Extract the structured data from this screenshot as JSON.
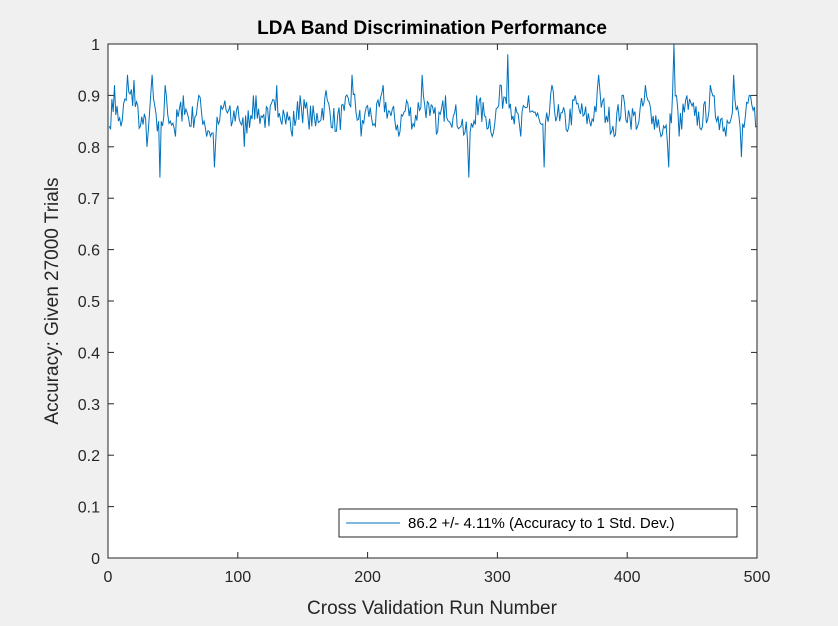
{
  "chart_data": {
    "type": "line",
    "title": "LDA Band Discrimination Performance",
    "xlabel": "Cross Validation Run Number",
    "ylabel": "Accuracy: Given 27000 Trials",
    "xlim": [
      0,
      500
    ],
    "ylim": [
      0,
      1
    ],
    "xticks": [
      0,
      100,
      200,
      300,
      400,
      500
    ],
    "xtick_labels": [
      "0",
      "100",
      "200",
      "300",
      "400",
      "500"
    ],
    "yticks": [
      0,
      0.1,
      0.2,
      0.3,
      0.4,
      0.5,
      0.6,
      0.7,
      0.8,
      0.9,
      1
    ],
    "ytick_labels": [
      "0",
      "0.1",
      "0.2",
      "0.3",
      "0.4",
      "0.5",
      "0.6",
      "0.7",
      "0.8",
      "0.9",
      "1"
    ],
    "grid": false,
    "legend_position": "bottom-right",
    "series": [
      {
        "name": "86.2 +/- 4.11% (Accuracy to 1 Std. Dev.)",
        "color": "#0072BD",
        "mean": 0.862,
        "std": 0.0411,
        "x_start": 1,
        "x_end": 500,
        "points": [
          [
            1,
            0.84
          ],
          [
            5,
            0.92
          ],
          [
            8,
            0.85
          ],
          [
            10,
            0.84
          ],
          [
            15,
            0.94
          ],
          [
            20,
            0.93
          ],
          [
            25,
            0.84
          ],
          [
            30,
            0.8
          ],
          [
            34,
            0.94
          ],
          [
            38,
            0.83
          ],
          [
            40,
            0.74
          ],
          [
            44,
            0.92
          ],
          [
            48,
            0.85
          ],
          [
            52,
            0.82
          ],
          [
            58,
            0.9
          ],
          [
            64,
            0.84
          ],
          [
            70,
            0.9
          ],
          [
            76,
            0.82
          ],
          [
            82,
            0.76
          ],
          [
            86,
            0.85
          ],
          [
            90,
            0.89
          ],
          [
            95,
            0.84
          ],
          [
            100,
            0.88
          ],
          [
            105,
            0.8
          ],
          [
            112,
            0.9
          ],
          [
            118,
            0.86
          ],
          [
            124,
            0.84
          ],
          [
            130,
            0.92
          ],
          [
            136,
            0.86
          ],
          [
            142,
            0.82
          ],
          [
            148,
            0.9
          ],
          [
            154,
            0.86
          ],
          [
            160,
            0.84
          ],
          [
            168,
            0.91
          ],
          [
            175,
            0.83
          ],
          [
            182,
            0.87
          ],
          [
            188,
            0.94
          ],
          [
            195,
            0.82
          ],
          [
            200,
            0.88
          ],
          [
            206,
            0.84
          ],
          [
            212,
            0.92
          ],
          [
            218,
            0.86
          ],
          [
            224,
            0.82
          ],
          [
            230,
            0.89
          ],
          [
            236,
            0.84
          ],
          [
            242,
            0.94
          ],
          [
            248,
            0.86
          ],
          [
            254,
            0.83
          ],
          [
            260,
            0.9
          ],
          [
            266,
            0.86
          ],
          [
            272,
            0.84
          ],
          [
            278,
            0.74
          ],
          [
            284,
            0.9
          ],
          [
            290,
            0.86
          ],
          [
            296,
            0.82
          ],
          [
            302,
            0.92
          ],
          [
            308,
            0.98
          ],
          [
            312,
            0.86
          ],
          [
            318,
            0.82
          ],
          [
            324,
            0.9
          ],
          [
            330,
            0.86
          ],
          [
            336,
            0.76
          ],
          [
            342,
            0.92
          ],
          [
            348,
            0.85
          ],
          [
            354,
            0.83
          ],
          [
            360,
            0.9
          ],
          [
            366,
            0.86
          ],
          [
            372,
            0.84
          ],
          [
            378,
            0.94
          ],
          [
            384,
            0.86
          ],
          [
            390,
            0.82
          ],
          [
            396,
            0.9
          ],
          [
            402,
            0.86
          ],
          [
            408,
            0.84
          ],
          [
            414,
            0.92
          ],
          [
            420,
            0.86
          ],
          [
            426,
            0.82
          ],
          [
            432,
            0.76
          ],
          [
            436,
            1.0
          ],
          [
            440,
            0.82
          ],
          [
            446,
            0.9
          ],
          [
            452,
            0.86
          ],
          [
            458,
            0.84
          ],
          [
            464,
            0.92
          ],
          [
            470,
            0.86
          ],
          [
            476,
            0.82
          ],
          [
            482,
            0.94
          ],
          [
            488,
            0.78
          ],
          [
            494,
            0.9
          ],
          [
            500,
            0.84
          ]
        ]
      }
    ]
  }
}
